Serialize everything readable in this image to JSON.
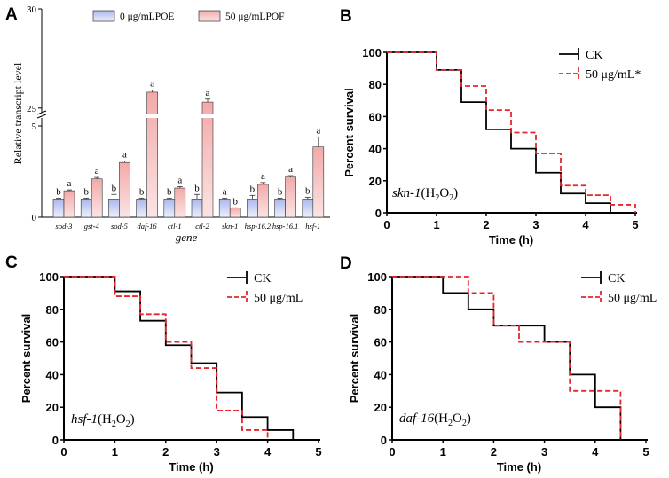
{
  "chart_data": [
    {
      "panel": "A",
      "type": "bar",
      "ylabel": "Relative transcript level",
      "xlabel": "gene",
      "axis_break": true,
      "y_ticks_lower": [
        "0",
        "5"
      ],
      "y_ticks_upper": [
        "25",
        "30"
      ],
      "categories": [
        "sod-3",
        "gst-4",
        "sod-5",
        "daf-16",
        "ctl-1",
        "ctl-2",
        "skn-1",
        "hsp-16.2",
        "hsp-16.1",
        "hsf-1"
      ],
      "series": [
        {
          "name": "0 μg/mLPOE",
          "color": "#b9c4ec",
          "values": [
            1.0,
            1.0,
            1.0,
            1.0,
            1.0,
            1.0,
            1.0,
            1.0,
            1.0,
            1.0
          ],
          "errors": [
            0.05,
            0.05,
            0.25,
            0.05,
            0.05,
            0.25,
            0.05,
            0.2,
            0.05,
            0.1
          ],
          "labels": [
            "b",
            "b",
            "b",
            "b",
            "b",
            "b",
            "a",
            "b",
            "b",
            "b"
          ]
        },
        {
          "name": "50 μg/mLPOF",
          "color": "#f4b9b9",
          "values": [
            1.45,
            2.1,
            3.0,
            25.8,
            1.6,
            25.3,
            0.5,
            1.8,
            2.2,
            3.85
          ],
          "errors": [
            0.05,
            0.08,
            0.08,
            0.1,
            0.08,
            0.15,
            0.02,
            0.1,
            0.08,
            0.55
          ],
          "labels": [
            "a",
            "a",
            "a",
            "a",
            "a",
            "a",
            "b",
            "a",
            "a",
            "a"
          ]
        }
      ]
    },
    {
      "panel": "B",
      "type": "line",
      "title": "skn-1(H2O2)",
      "annotation": {
        "gene": "skn-1",
        "paren_open": "(H",
        "sub1": "2",
        "mid": "O",
        "sub2": "2",
        "paren_close": ")"
      },
      "xlabel": "Time (h)",
      "ylabel": "Percent survival",
      "xlim": [
        0,
        5
      ],
      "ylim": [
        0,
        100
      ],
      "x_ticks": [
        "0",
        "1",
        "2",
        "3",
        "4",
        "5"
      ],
      "y_ticks": [
        "0",
        "20",
        "40",
        "60",
        "80",
        "100"
      ],
      "series": [
        {
          "name": "CK",
          "color": "#000000",
          "dashed": false,
          "x": [
            0,
            1,
            1.5,
            2,
            2.5,
            3,
            3.5,
            4,
            4.5
          ],
          "y": [
            100,
            89,
            69,
            52,
            40,
            25,
            12,
            6,
            0
          ]
        },
        {
          "name": "50 μg/mL*",
          "color": "#e8252d",
          "dashed": true,
          "x": [
            0,
            1,
            1.5,
            2,
            2.5,
            3,
            3.5,
            4,
            4.5,
            5
          ],
          "y": [
            100,
            89,
            79,
            64,
            50,
            37,
            17,
            11,
            5,
            0
          ]
        }
      ]
    },
    {
      "panel": "C",
      "type": "line",
      "title": "hsf-1(H2O2)",
      "annotation": {
        "gene": "hsf-1",
        "paren_open": "(H",
        "sub1": "2",
        "mid": "O",
        "sub2": "2",
        "paren_close": ")"
      },
      "xlabel": "Time (h)",
      "ylabel": "Percent survival",
      "xlim": [
        0,
        5
      ],
      "ylim": [
        0,
        100
      ],
      "x_ticks": [
        "0",
        "1",
        "2",
        "3",
        "4",
        "5"
      ],
      "y_ticks": [
        "0",
        "20",
        "40",
        "60",
        "80",
        "100"
      ],
      "series": [
        {
          "name": "CK",
          "color": "#000000",
          "dashed": false,
          "x": [
            0,
            1,
            1.5,
            2,
            2.5,
            3,
            3.5,
            4,
            4.5
          ],
          "y": [
            100,
            91,
            73,
            58,
            47,
            29,
            14,
            6,
            0
          ]
        },
        {
          "name": "50 μg/mL",
          "color": "#e8252d",
          "dashed": true,
          "x": [
            0,
            1,
            1.5,
            2,
            2.5,
            3,
            3.5,
            4
          ],
          "y": [
            100,
            88,
            77,
            60,
            44,
            18,
            6,
            0
          ]
        }
      ]
    },
    {
      "panel": "D",
      "type": "line",
      "title": "daf-16(H2O2)",
      "annotation": {
        "gene": "daf-16",
        "paren_open": "(H",
        "sub1": "2",
        "mid": "O",
        "sub2": "2",
        "paren_close": ")"
      },
      "xlabel": "Time (h)",
      "ylabel": "Percent survival",
      "xlim": [
        0,
        5
      ],
      "ylim": [
        0,
        100
      ],
      "x_ticks": [
        "0",
        "1",
        "2",
        "3",
        "4",
        "5"
      ],
      "y_ticks": [
        "0",
        "20",
        "40",
        "60",
        "80",
        "100"
      ],
      "series": [
        {
          "name": "CK",
          "color": "#000000",
          "dashed": false,
          "x": [
            0,
            1,
            1.5,
            2,
            3,
            3.5,
            4,
            4.5
          ],
          "y": [
            100,
            90,
            80,
            70,
            60,
            40,
            20,
            0
          ]
        },
        {
          "name": "50 μg/mL",
          "color": "#e8252d",
          "dashed": true,
          "x": [
            0,
            1.5,
            2,
            2.5,
            3.5,
            4.5
          ],
          "y": [
            100,
            90,
            70,
            60,
            30,
            0
          ]
        }
      ]
    }
  ]
}
